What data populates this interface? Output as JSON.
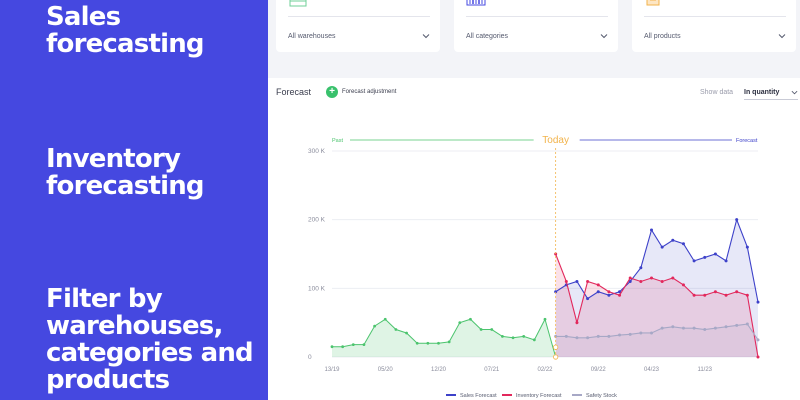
{
  "left_panel": {
    "features": [
      "Sales\nforecasting",
      "Inventory\nforecasting",
      "Filter by\nwarehouses,\ncategories and\nproducts"
    ],
    "background": "#4548e0"
  },
  "filters": [
    {
      "icon": "warehouse-icon",
      "value": "All warehouses"
    },
    {
      "icon": "barcode-icon",
      "value": "All categories"
    },
    {
      "icon": "product-box-icon",
      "value": "All products"
    }
  ],
  "forecast_panel": {
    "title": "Forecast",
    "adjust_button": "Forecast adjustment",
    "show_data_label": "Show data",
    "show_data_value": "In quantity"
  },
  "chart_data": {
    "type": "line",
    "past_label": "Past",
    "today_label": "Today",
    "forecast_label": "Forecast",
    "y_ticks": [
      "300  K",
      "200  K",
      "100  K",
      "0"
    ],
    "y_tick_values": [
      300,
      200,
      100,
      0
    ],
    "ylim": [
      0,
      300
    ],
    "x_ticks": [
      "13/19",
      "05/20",
      "12/20",
      "07/21",
      "02/22",
      "09/22",
      "04/23",
      "11/23"
    ],
    "x_tick_index": [
      0,
      5,
      10,
      15,
      20,
      25,
      30,
      35
    ],
    "x_index_range": [
      0,
      40
    ],
    "today_index": 21,
    "grid": true,
    "legend_position": "bottom",
    "colors": {
      "past": "#4cc46e",
      "sales": "#3d41c9",
      "inventory": "#e2285c",
      "safety": "#a7a8c6",
      "today": "#f2b34b"
    },
    "series": [
      {
        "name": "Sales Forecast",
        "key": "sales",
        "x": [
          21,
          22,
          23,
          24,
          25,
          26,
          27,
          28,
          29,
          30,
          31,
          32,
          33,
          34,
          35,
          36,
          37,
          38,
          39,
          40
        ],
        "values": [
          95,
          105,
          110,
          85,
          95,
          90,
          95,
          110,
          130,
          185,
          160,
          170,
          165,
          140,
          145,
          150,
          140,
          200,
          160,
          80
        ]
      },
      {
        "name": "Inventory Forecast",
        "key": "inventory",
        "x": [
          21,
          22,
          23,
          24,
          25,
          26,
          27,
          28,
          29,
          30,
          31,
          32,
          33,
          34,
          35,
          36,
          37,
          38,
          39,
          40
        ],
        "values": [
          150,
          110,
          50,
          110,
          105,
          95,
          90,
          115,
          110,
          115,
          110,
          115,
          105,
          90,
          90,
          95,
          90,
          95,
          90,
          0
        ]
      },
      {
        "name": "Safety Stock",
        "key": "safety",
        "x": [
          21,
          22,
          23,
          24,
          25,
          26,
          27,
          28,
          29,
          30,
          31,
          32,
          33,
          34,
          35,
          36,
          37,
          38,
          39,
          40
        ],
        "values": [
          30,
          30,
          28,
          28,
          30,
          30,
          32,
          33,
          35,
          35,
          42,
          44,
          42,
          42,
          40,
          42,
          44,
          46,
          48,
          25
        ]
      }
    ],
    "past_series": {
      "x": [
        0,
        1,
        2,
        3,
        4,
        5,
        6,
        7,
        8,
        9,
        10,
        11,
        12,
        13,
        14,
        15,
        16,
        17,
        18,
        19,
        20,
        21
      ],
      "values": [
        15,
        15,
        18,
        18,
        45,
        55,
        40,
        35,
        20,
        20,
        20,
        22,
        50,
        55,
        40,
        40,
        30,
        28,
        30,
        25,
        55,
        0
      ]
    }
  }
}
